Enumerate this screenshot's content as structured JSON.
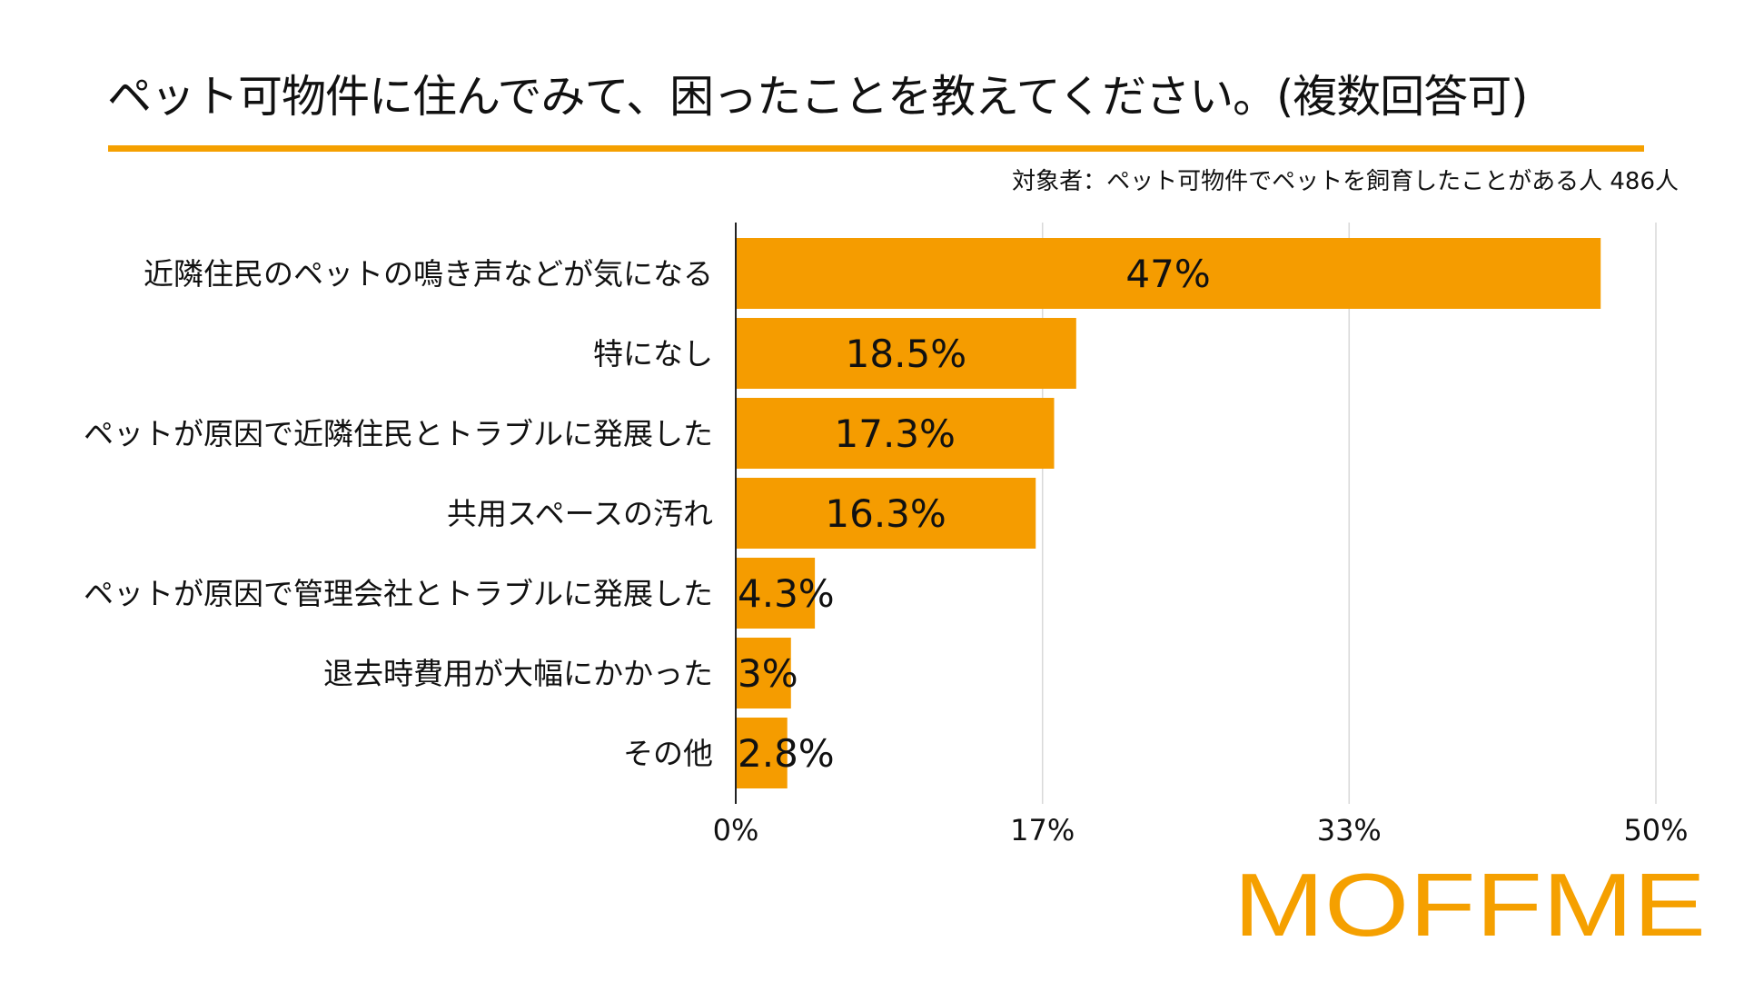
{
  "chart_data": {
    "type": "bar",
    "orientation": "horizontal",
    "title": "ペット可物件に住んでみて、困ったことを教えてください。(複数回答可)",
    "subtitle": "対象者：ペット可物件でペットを飼育したことがある人 486人",
    "categories": [
      "近隣住民のペットの鳴き声などが気になる",
      "特になし",
      "ペットが原因で近隣住民とトラブルに発展した",
      "共用スペースの汚れ",
      "ペットが原因で管理会社とトラブルに発展した",
      "退去時費用が大幅にかかった",
      "その他"
    ],
    "values": [
      47,
      18.5,
      17.3,
      16.3,
      4.3,
      3,
      2.8
    ],
    "data_labels": [
      "47%",
      "18.5%",
      "17.3%",
      "16.3%",
      "4.3%",
      "3%",
      "2.8%"
    ],
    "xlim": [
      0,
      50
    ],
    "ticks": [
      0,
      16.67,
      33.33,
      50
    ],
    "tick_labels": [
      "0%",
      "17%",
      "33%",
      "50%"
    ],
    "grid": true,
    "bar_color": "#f59c00",
    "xlabel": "",
    "ylabel": ""
  },
  "brand": {
    "logo_text": "MOFFME",
    "logo_color": "#f5a000"
  },
  "colors": {
    "accent": "#f5a000",
    "bar": "#f59c00",
    "grid": "#d9d9d9",
    "axis": "#222222"
  }
}
